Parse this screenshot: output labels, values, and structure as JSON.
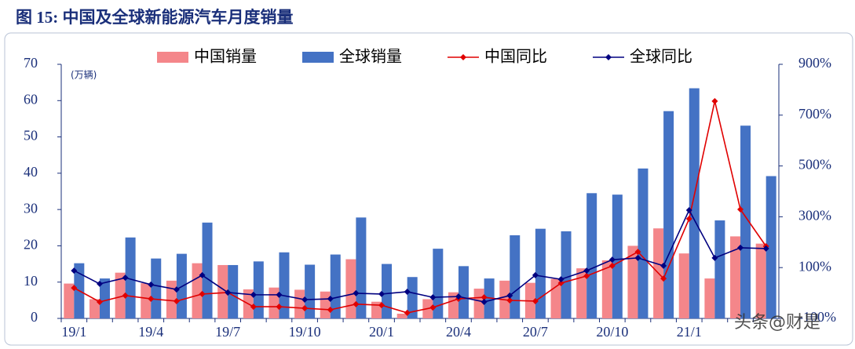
{
  "chart_data": {
    "type": "combo",
    "title": "图 15:  中国及全球新能源汽车月度销量",
    "y_label": "(万辆)",
    "watermark": "头条@财是",
    "categories": [
      "19/1",
      null,
      null,
      "19/4",
      null,
      null,
      "19/7",
      null,
      null,
      "19/10",
      null,
      null,
      "20/1",
      null,
      null,
      "20/4",
      null,
      null,
      "20/7",
      null,
      null,
      "20/10",
      null,
      null,
      "21/1",
      null,
      null,
      null
    ],
    "ylim": [
      0,
      70
    ],
    "yticks": [
      0,
      10,
      20,
      30,
      40,
      50,
      60,
      70
    ],
    "y2lim": [
      -100,
      900
    ],
    "y2ticks": [
      {
        "value": -100,
        "label": "-100%"
      },
      {
        "value": 100,
        "label": "100%"
      },
      {
        "value": 300,
        "label": "300%"
      },
      {
        "value": 500,
        "label": "500%"
      },
      {
        "value": 700,
        "label": "700%"
      },
      {
        "value": 900,
        "label": "900%"
      }
    ],
    "legend": "top",
    "series": [
      {
        "name": "中国销量",
        "type": "bar",
        "color": "#f4868a",
        "values": [
          9.6,
          5.3,
          12.6,
          9.7,
          10.4,
          15.2,
          14.7,
          8.0,
          8.5,
          7.9,
          7.4,
          16.3,
          4.6,
          1.3,
          5.3,
          7.2,
          8.2,
          10.4,
          9.8,
          10.9,
          13.8,
          16.0,
          20.0,
          24.8,
          17.9,
          11.0,
          22.6,
          20.6
        ]
      },
      {
        "name": "全球销量",
        "type": "bar",
        "color": "#4472c4",
        "values": [
          15.2,
          11.0,
          22.3,
          16.5,
          17.8,
          26.4,
          14.7,
          15.7,
          18.2,
          14.8,
          17.6,
          27.8,
          15.0,
          11.4,
          19.2,
          14.4,
          11.0,
          22.9,
          24.7,
          24.0,
          34.5,
          34.1,
          41.3,
          57.1,
          63.4,
          27.0,
          53.1,
          39.2
        ]
      },
      {
        "name": "中国同比",
        "type": "line",
        "axis": "y2",
        "color": "#e00000",
        "values": [
          20,
          -35,
          -10,
          -23,
          -32,
          -4,
          2,
          -54,
          -54,
          -60,
          -66,
          -44,
          -48,
          -78,
          -57,
          -23,
          -17,
          -29,
          -32,
          39,
          67,
          107,
          162,
          57,
          292,
          755,
          329,
          184
        ]
      },
      {
        "name": "全球同比",
        "type": "line",
        "axis": "y2",
        "color": "#000080",
        "values": [
          88,
          36,
          60,
          33,
          14,
          70,
          2,
          -7,
          -7,
          -26,
          -23,
          -1,
          -4,
          5,
          -17,
          -14,
          -35,
          -10,
          70,
          54,
          88,
          131,
          138,
          107,
          326,
          138,
          178,
          175
        ]
      }
    ]
  }
}
